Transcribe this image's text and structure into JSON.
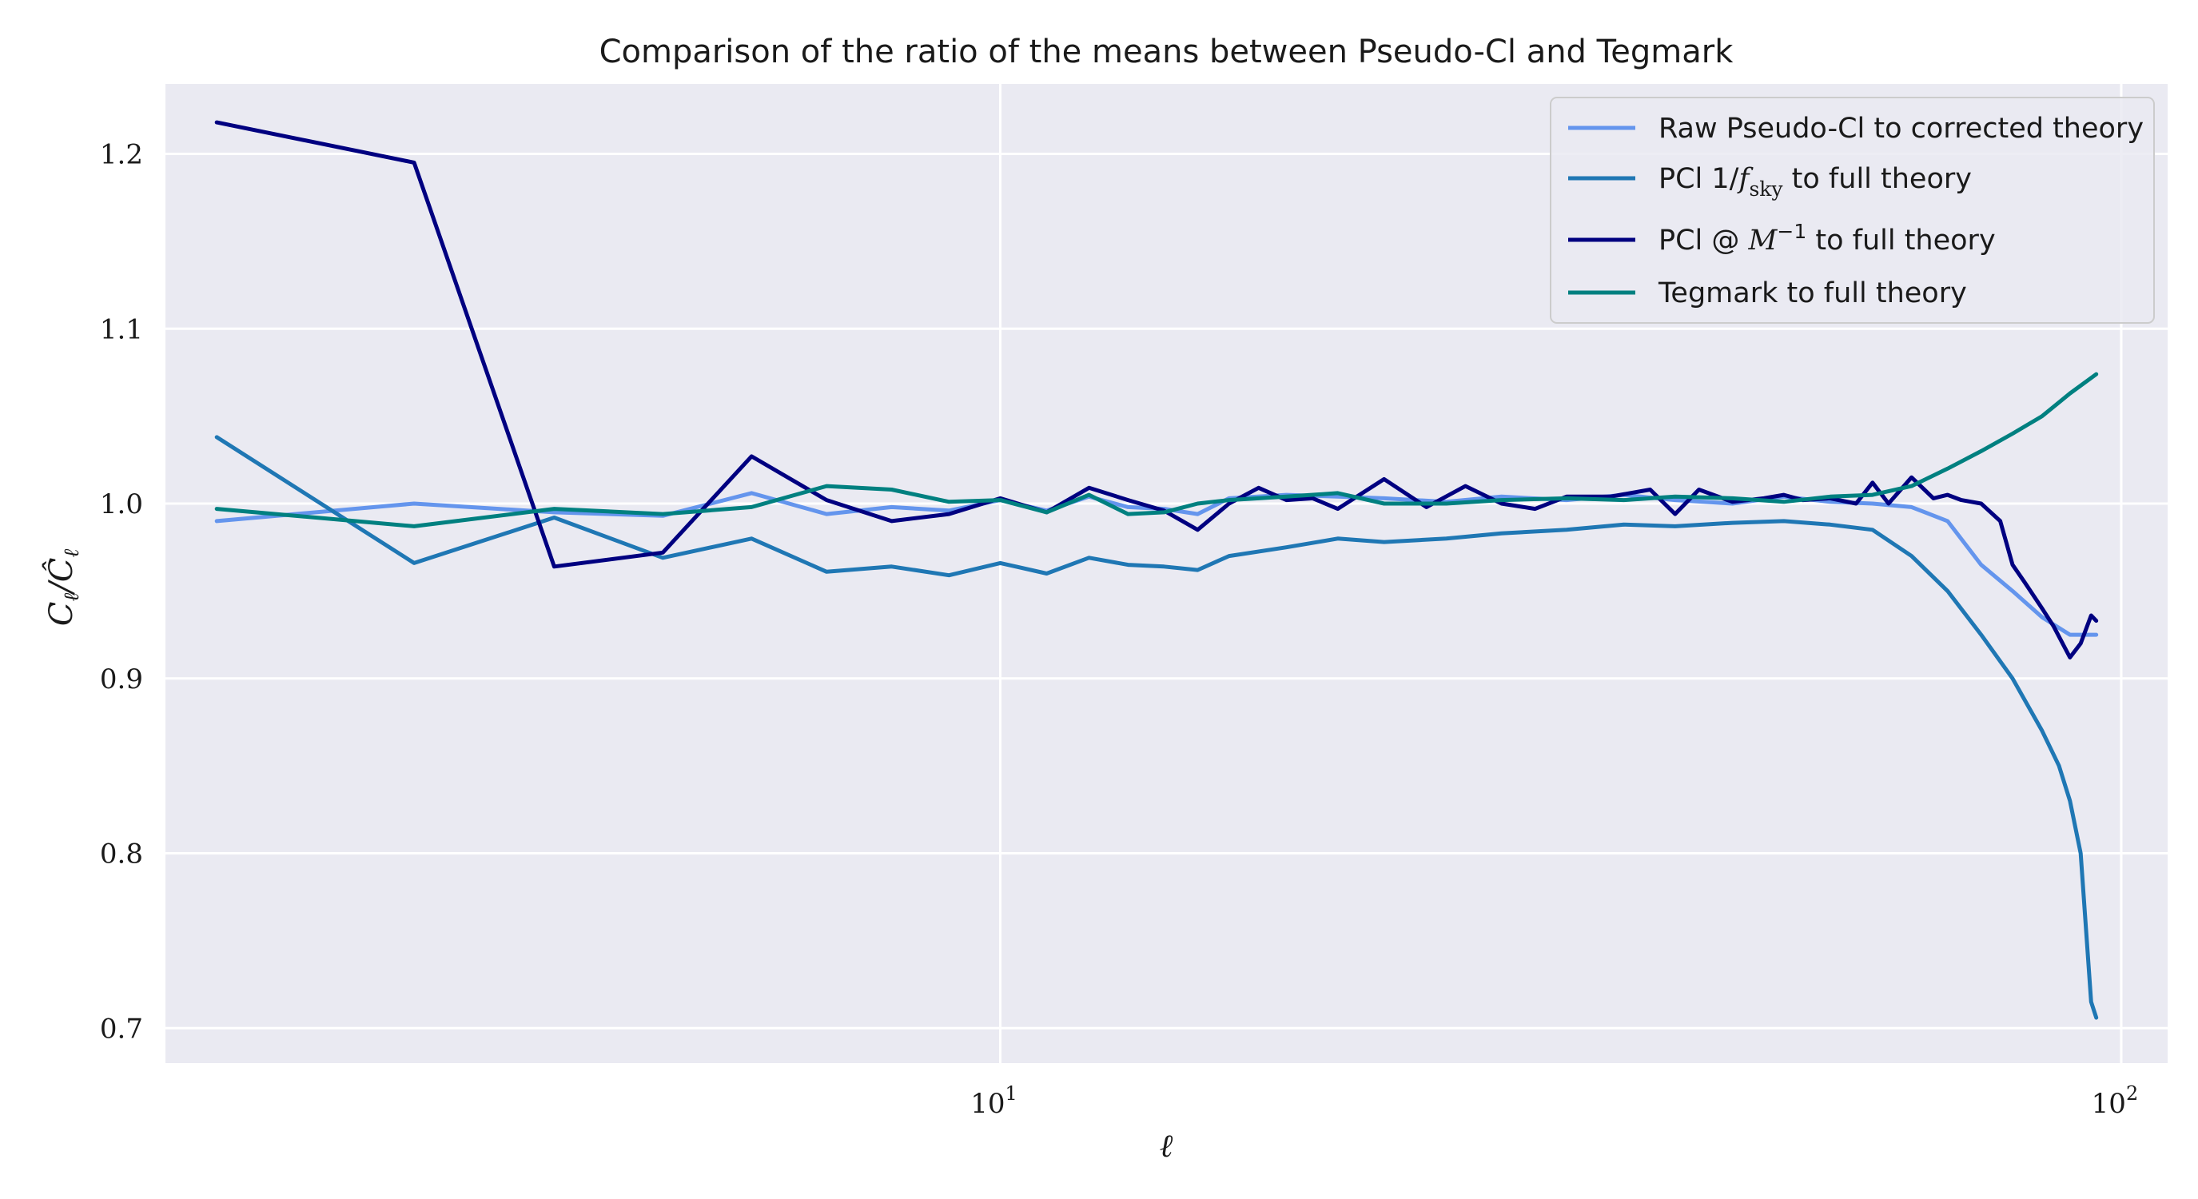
{
  "chart_data": {
    "type": "line",
    "title": "Comparison of the ratio of the means between Pseudo-Cl and Tegmark",
    "xlabel": "ℓ",
    "ylabel": "C_ℓ / Ĉ_ℓ",
    "xscale": "log",
    "xlim": [
      1.8,
      110
    ],
    "ylim": [
      0.68,
      1.24
    ],
    "grid": true,
    "legend_position": "top-right",
    "x_ticks": [
      {
        "value": 10,
        "label": "10",
        "exp": "1"
      },
      {
        "value": 100,
        "label": "10",
        "exp": "2"
      }
    ],
    "y_ticks": [
      {
        "value": 0.7,
        "label": "0.7"
      },
      {
        "value": 0.8,
        "label": "0.8"
      },
      {
        "value": 0.9,
        "label": "0.9"
      },
      {
        "value": 1.0,
        "label": "1.0"
      },
      {
        "value": 1.1,
        "label": "1.1"
      },
      {
        "value": 1.2,
        "label": "1.2"
      }
    ],
    "series": [
      {
        "name": "Raw Pseudo-Cl to corrected theory",
        "color": "#6495ED",
        "x": [
          2,
          3,
          4,
          5,
          6,
          7,
          8,
          9,
          10,
          11,
          12,
          13,
          14,
          15,
          16,
          18,
          20,
          22,
          25,
          28,
          32,
          36,
          40,
          45,
          50,
          55,
          60,
          65,
          70,
          75,
          80,
          85,
          90,
          95
        ],
        "y": [
          0.99,
          1.0,
          0.995,
          0.993,
          1.006,
          0.994,
          0.998,
          0.996,
          1.002,
          0.996,
          1.004,
          0.998,
          0.997,
          0.994,
          1.003,
          1.005,
          1.004,
          1.003,
          1.001,
          1.004,
          1.002,
          1.005,
          1.002,
          1.0,
          1.004,
          1.001,
          1.0,
          0.998,
          0.99,
          0.965,
          0.95,
          0.935,
          0.925,
          0.925
        ]
      },
      {
        "name": "PCl 1/f_sky to full theory",
        "color": "#1f77b4",
        "x": [
          2,
          3,
          4,
          5,
          6,
          7,
          8,
          9,
          10,
          11,
          12,
          13,
          14,
          15,
          16,
          18,
          20,
          22,
          25,
          28,
          32,
          36,
          40,
          45,
          50,
          55,
          60,
          65,
          70,
          75,
          80,
          85,
          88,
          90,
          92,
          94,
          95
        ],
        "y": [
          1.038,
          0.966,
          0.992,
          0.969,
          0.98,
          0.961,
          0.964,
          0.959,
          0.966,
          0.96,
          0.969,
          0.965,
          0.964,
          0.962,
          0.97,
          0.975,
          0.98,
          0.978,
          0.98,
          0.983,
          0.985,
          0.988,
          0.987,
          0.989,
          0.99,
          0.988,
          0.985,
          0.97,
          0.95,
          0.925,
          0.9,
          0.87,
          0.85,
          0.83,
          0.8,
          0.715,
          0.706
        ]
      },
      {
        "name": "PCl @ M^-1 to full theory",
        "color": "#000080",
        "x": [
          2,
          3,
          4,
          5,
          6,
          7,
          8,
          9,
          10,
          11,
          12,
          13,
          14,
          15,
          16,
          17,
          18,
          19,
          20,
          22,
          24,
          26,
          28,
          30,
          32,
          35,
          38,
          40,
          42,
          45,
          48,
          50,
          52,
          55,
          58,
          60,
          62,
          65,
          68,
          70,
          72,
          75,
          78,
          80,
          82,
          85,
          87,
          90,
          92,
          94,
          95
        ],
        "y": [
          1.218,
          1.195,
          0.964,
          0.972,
          1.027,
          1.002,
          0.99,
          0.994,
          1.003,
          0.995,
          1.009,
          1.002,
          0.996,
          0.985,
          1.0,
          1.009,
          1.002,
          1.003,
          0.997,
          1.014,
          0.998,
          1.01,
          1.0,
          0.997,
          1.004,
          1.004,
          1.008,
          0.994,
          1.008,
          1.001,
          1.003,
          1.005,
          1.002,
          1.003,
          1.0,
          1.012,
          1.0,
          1.015,
          1.003,
          1.005,
          1.002,
          1.0,
          0.99,
          0.965,
          0.955,
          0.94,
          0.93,
          0.912,
          0.92,
          0.936,
          0.933
        ]
      },
      {
        "name": "Tegmark to full theory",
        "color": "#008080",
        "x": [
          2,
          3,
          4,
          5,
          6,
          7,
          8,
          9,
          10,
          11,
          12,
          13,
          14,
          15,
          16,
          18,
          20,
          22,
          25,
          28,
          32,
          36,
          40,
          45,
          50,
          55,
          60,
          65,
          70,
          75,
          80,
          85,
          90,
          95
        ],
        "y": [
          0.997,
          0.987,
          0.997,
          0.994,
          0.998,
          1.01,
          1.008,
          1.001,
          1.002,
          0.995,
          1.005,
          0.994,
          0.995,
          1.0,
          1.002,
          1.004,
          1.006,
          1.0,
          1.0,
          1.002,
          1.003,
          1.002,
          1.004,
          1.003,
          1.001,
          1.004,
          1.005,
          1.01,
          1.02,
          1.03,
          1.04,
          1.05,
          1.063,
          1.074
        ]
      }
    ]
  }
}
